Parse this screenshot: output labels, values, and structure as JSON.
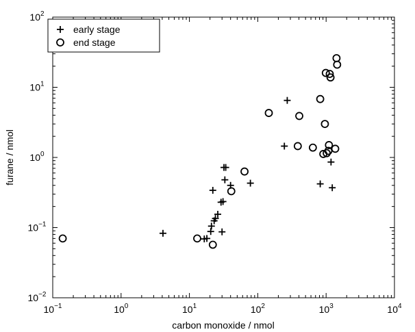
{
  "chart_data": {
    "type": "scatter",
    "title": "",
    "xlabel": "carbon monoxide / nmol",
    "ylabel": "furane / nmol",
    "xscale": "log",
    "yscale": "log",
    "xlim": [
      0.1,
      10000
    ],
    "ylim": [
      0.01,
      100
    ],
    "grid": false,
    "legend_position": "top-left",
    "x_ticks": [
      {
        "base": "10",
        "exp": "−1"
      },
      {
        "base": "10",
        "exp": "0"
      },
      {
        "base": "10",
        "exp": "1"
      },
      {
        "base": "10",
        "exp": "2"
      },
      {
        "base": "10",
        "exp": "3"
      },
      {
        "base": "10",
        "exp": "4"
      }
    ],
    "y_ticks": [
      {
        "base": "10",
        "exp": "−2"
      },
      {
        "base": "10",
        "exp": "−1"
      },
      {
        "base": "10",
        "exp": "0"
      },
      {
        "base": "10",
        "exp": "1"
      },
      {
        "base": "10",
        "exp": "2"
      }
    ],
    "series": [
      {
        "name": "early stage",
        "marker": "plus",
        "color": "#000000",
        "points": [
          [
            4.1,
            0.083
          ],
          [
            16.5,
            0.069
          ],
          [
            18.0,
            0.07
          ],
          [
            20.5,
            0.088
          ],
          [
            21.0,
            0.105
          ],
          [
            22.0,
            0.34
          ],
          [
            23.0,
            0.125
          ],
          [
            24.0,
            0.135
          ],
          [
            26.0,
            0.155
          ],
          [
            29.0,
            0.23
          ],
          [
            30.0,
            0.087
          ],
          [
            31.0,
            0.235
          ],
          [
            32.0,
            0.72
          ],
          [
            34.0,
            0.72
          ],
          [
            33.0,
            0.48
          ],
          [
            40.0,
            0.4
          ],
          [
            78.0,
            0.43
          ],
          [
            245.0,
            1.45
          ],
          [
            270.0,
            6.5
          ],
          [
            820.0,
            0.42
          ],
          [
            1180.0,
            0.86
          ],
          [
            1230.0,
            0.37
          ]
        ]
      },
      {
        "name": "end stage",
        "marker": "circle",
        "color": "#000000",
        "points": [
          [
            0.14,
            0.07
          ],
          [
            13.0,
            0.07
          ],
          [
            22.0,
            0.057
          ],
          [
            41.0,
            0.33
          ],
          [
            64.0,
            0.63
          ],
          [
            145.0,
            4.3
          ],
          [
            385.0,
            1.45
          ],
          [
            405.0,
            3.9
          ],
          [
            640.0,
            1.38
          ],
          [
            820.0,
            6.8
          ],
          [
            910.0,
            1.12
          ],
          [
            960.0,
            3.0
          ],
          [
            990.0,
            16.0
          ],
          [
            1020.0,
            1.15
          ],
          [
            1080.0,
            1.24
          ],
          [
            1100.0,
            1.5
          ],
          [
            1130.0,
            15.5
          ],
          [
            1160.0,
            13.8
          ],
          [
            1360.0,
            1.33
          ],
          [
            1420.0,
            26.0
          ],
          [
            1450.0,
            21.0
          ]
        ]
      }
    ]
  }
}
